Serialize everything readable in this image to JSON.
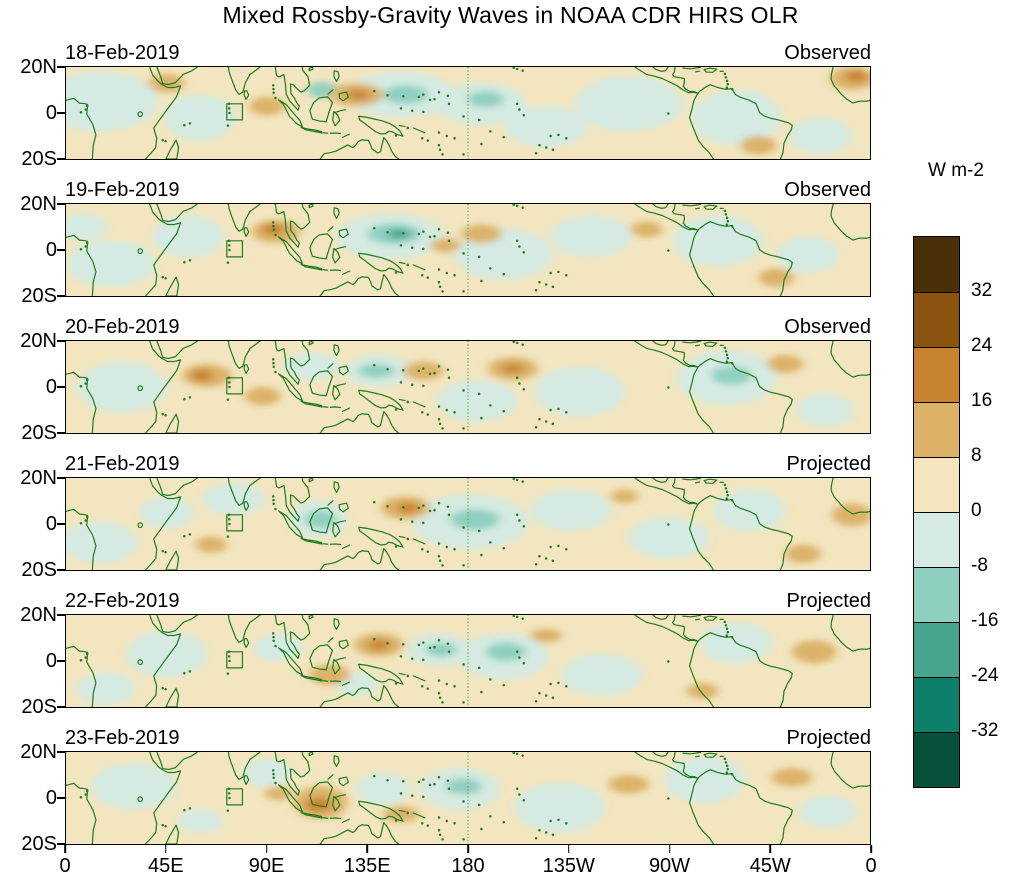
{
  "title": "Mixed Rossby-Gravity Waves in NOAA CDR HIRS OLR",
  "colorbar": {
    "unit_label": "W m-2",
    "tick_labels": [
      "32",
      "24",
      "16",
      "8",
      "0",
      "-8",
      "-16",
      "-24",
      "-32"
    ],
    "colors": [
      "#4a3008",
      "#8a5410",
      "#c8832f",
      "#dcb269",
      "#f2e5bf",
      "#d4eae2",
      "#8fcfbf",
      "#47a58d",
      "#0e7f68",
      "#07503c"
    ]
  },
  "axes": {
    "x_ticks": [
      {
        "label": "0",
        "lon": 0
      },
      {
        "label": "45E",
        "lon": 45
      },
      {
        "label": "90E",
        "lon": 90
      },
      {
        "label": "135E",
        "lon": 135
      },
      {
        "label": "180",
        "lon": 180
      },
      {
        "label": "135W",
        "lon": 225
      },
      {
        "label": "90W",
        "lon": 270
      },
      {
        "label": "45W",
        "lon": 315
      },
      {
        "label": "0",
        "lon": 360
      }
    ],
    "y_ticks": [
      {
        "label": "20N",
        "lat": 20
      },
      {
        "label": "0",
        "lat": 0
      },
      {
        "label": "20S",
        "lat": -20
      }
    ]
  },
  "map_style": {
    "coastline_color": "#1e7b1e",
    "dateline_color": "#4aa04a",
    "background_level_color": "#f2e5bf"
  },
  "chart_data": {
    "type": "filled_contour_map_series",
    "title": "Mixed Rossby-Gravity Waves in NOAA CDR HIRS OLR",
    "units": "W m-2",
    "lon_range": [
      0,
      360
    ],
    "lat_range": [
      -20,
      20
    ],
    "contour_levels": [
      -32,
      -24,
      -16,
      -8,
      0,
      8,
      16,
      24,
      32
    ],
    "level_colors": {
      "-3": "#47a58d",
      "-2": "#8fcfbf",
      "-1": "#d4eae2",
      "1": "#f2e5bf",
      "2": "#dcb269",
      "3": "#c8832f"
    },
    "level_meaning": {
      "3": "OLR anomaly +16 to +24",
      "2": "+8 to +16",
      "1": "0 to +8",
      "-1": "-8 to 0",
      "-2": "-16 to -8",
      "-3": "-24 to -16"
    },
    "panels": [
      {
        "date": "18-Feb-2019",
        "status": "Observed",
        "anomalies": [
          [
            15,
            5,
            26,
            13,
            -1
          ],
          [
            60,
            -2,
            16,
            10,
            -1
          ],
          [
            150,
            8,
            24,
            10,
            -1
          ],
          [
            186,
            4,
            20,
            9,
            -1
          ],
          [
            215,
            -6,
            18,
            9,
            -1
          ],
          [
            252,
            4,
            24,
            12,
            -1
          ],
          [
            300,
            -2,
            20,
            12,
            -1
          ],
          [
            338,
            -10,
            14,
            8,
            -1
          ],
          [
            152,
            8,
            10,
            4,
            -2
          ],
          [
            188,
            6,
            8,
            3.5,
            -2
          ],
          [
            115,
            10,
            7,
            3.5,
            -2
          ],
          [
            130,
            8,
            12,
            5,
            2
          ],
          [
            90,
            3,
            8,
            4,
            2
          ],
          [
            352,
            15,
            10,
            5,
            2
          ],
          [
            45,
            13,
            8,
            4,
            2
          ],
          [
            310,
            -14,
            8,
            4,
            2
          ],
          [
            131,
            8,
            5,
            2,
            3
          ],
          [
            354,
            16,
            5,
            2.5,
            3
          ]
        ]
      },
      {
        "date": "19-Feb-2019",
        "status": "Observed",
        "anomalies": [
          [
            20,
            -6,
            20,
            10,
            -1
          ],
          [
            55,
            6,
            16,
            9,
            -1
          ],
          [
            145,
            6,
            24,
            10,
            -1
          ],
          [
            196,
            -2,
            22,
            11,
            -1
          ],
          [
            235,
            6,
            18,
            9,
            -1
          ],
          [
            292,
            4,
            20,
            11,
            -1
          ],
          [
            332,
            -2,
            14,
            8,
            -1
          ],
          [
            8,
            10,
            10,
            6,
            -1
          ],
          [
            147,
            7,
            12,
            4.5,
            -2
          ],
          [
            149,
            7,
            5,
            2,
            -3
          ],
          [
            94,
            8,
            11,
            5,
            2
          ],
          [
            186,
            7,
            9,
            4,
            2
          ],
          [
            170,
            2,
            7,
            3,
            2
          ],
          [
            260,
            9,
            7,
            3.5,
            2
          ],
          [
            318,
            -12,
            8,
            4,
            2
          ],
          [
            93,
            9,
            5,
            2.5,
            3
          ]
        ]
      },
      {
        "date": "20-Feb-2019",
        "status": "Observed",
        "anomalies": [
          [
            25,
            0,
            20,
            11,
            -1
          ],
          [
            110,
            9,
            13,
            6,
            -1
          ],
          [
            140,
            7,
            15,
            7,
            -1
          ],
          [
            184,
            -6,
            18,
            9,
            -1
          ],
          [
            230,
            -2,
            20,
            11,
            -1
          ],
          [
            296,
            4,
            22,
            12,
            -1
          ],
          [
            340,
            -10,
            13,
            7,
            -1
          ],
          [
            139,
            7,
            8,
            3,
            -2
          ],
          [
            298,
            5,
            9,
            4,
            -2
          ],
          [
            63,
            5,
            11,
            5,
            2
          ],
          [
            88,
            -4,
            8,
            4,
            2
          ],
          [
            160,
            7,
            9,
            4,
            2
          ],
          [
            200,
            8,
            11,
            5,
            2
          ],
          [
            322,
            10,
            8,
            4,
            2
          ],
          [
            61,
            5,
            5,
            2.5,
            3
          ],
          [
            200,
            8,
            5,
            2,
            3
          ]
        ]
      },
      {
        "date": "21-Feb-2019",
        "status": "Projected",
        "anomalies": [
          [
            15,
            -8,
            17,
            9,
            -1
          ],
          [
            75,
            11,
            14,
            7,
            -1
          ],
          [
            113,
            2,
            13,
            8,
            -1
          ],
          [
            181,
            1,
            26,
            12,
            -1
          ],
          [
            226,
            6,
            18,
            9,
            -1
          ],
          [
            270,
            -6,
            18,
            9,
            -1
          ],
          [
            306,
            6,
            16,
            9,
            -1
          ],
          [
            45,
            5,
            12,
            7,
            -1
          ],
          [
            114,
            2,
            7,
            4,
            -2
          ],
          [
            183,
            2,
            11,
            4.5,
            -2
          ],
          [
            152,
            7,
            11,
            5,
            2
          ],
          [
            65,
            -9,
            7,
            3.5,
            2
          ],
          [
            352,
            4,
            9,
            5,
            2
          ],
          [
            330,
            -13,
            8,
            4,
            2
          ],
          [
            250,
            12,
            6,
            3,
            2
          ],
          [
            153,
            7,
            5,
            2.2,
            3
          ]
        ]
      },
      {
        "date": "22-Feb-2019",
        "status": "Projected",
        "anomalies": [
          [
            45,
            3,
            18,
            10,
            -1
          ],
          [
            95,
            6,
            11,
            6,
            -1
          ],
          [
            167,
            5,
            14,
            7,
            -1
          ],
          [
            196,
            2,
            20,
            10,
            -1
          ],
          [
            240,
            -6,
            18,
            9,
            -1
          ],
          [
            300,
            8,
            16,
            9,
            -1
          ],
          [
            18,
            -12,
            13,
            7,
            -1
          ],
          [
            130,
            -10,
            10,
            5,
            -1
          ],
          [
            168,
            5,
            7,
            3,
            -2
          ],
          [
            197,
            4,
            9,
            4,
            -2
          ],
          [
            140,
            7,
            11,
            5,
            2
          ],
          [
            118,
            -6,
            9,
            4.5,
            2
          ],
          [
            215,
            11,
            7,
            3,
            2
          ],
          [
            335,
            4,
            10,
            5,
            2
          ],
          [
            285,
            -13,
            7,
            3.5,
            2
          ],
          [
            140,
            7,
            5,
            2.2,
            3
          ]
        ]
      },
      {
        "date": "23-Feb-2019",
        "status": "Projected",
        "anomalies": [
          [
            30,
            5,
            19,
            10,
            -1
          ],
          [
            90,
            11,
            11,
            6,
            -1
          ],
          [
            142,
            4,
            12,
            7,
            -1
          ],
          [
            176,
            4,
            18,
            9,
            -1
          ],
          [
            221,
            -4,
            20,
            11,
            -1
          ],
          [
            286,
            8,
            18,
            10,
            -1
          ],
          [
            341,
            -6,
            13,
            7,
            -1
          ],
          [
            60,
            -10,
            10,
            5,
            -1
          ],
          [
            178,
            5,
            8,
            3.5,
            -2
          ],
          [
            114,
            -2,
            12,
            7,
            2
          ],
          [
            150,
            -7,
            8,
            3.5,
            2
          ],
          [
            252,
            6,
            9,
            4,
            2
          ],
          [
            325,
            9,
            9,
            4,
            2
          ],
          [
            95,
            2,
            6,
            3,
            2
          ],
          [
            113,
            -3,
            6,
            3,
            3
          ]
        ]
      }
    ]
  }
}
